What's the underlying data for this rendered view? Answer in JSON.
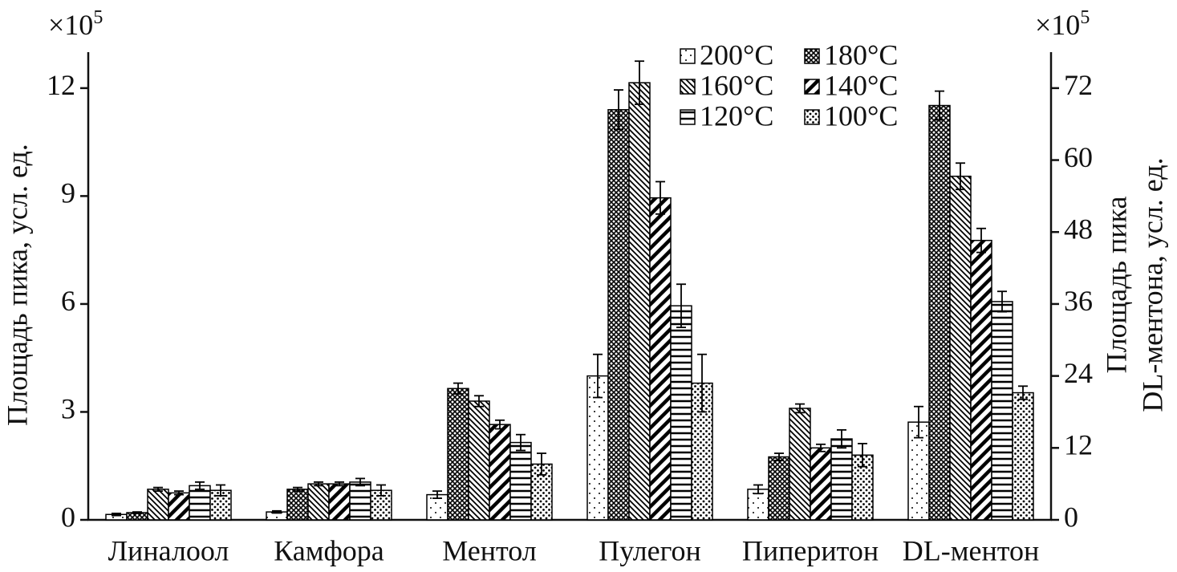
{
  "chart_data": {
    "type": "bar",
    "y_multiplier": "×10",
    "y_multiplier_exp": "5",
    "y2_multiplier": "×10",
    "y2_multiplier_exp": "5",
    "ylabel": "Площадь пика, усл. ед.",
    "y2label": [
      "Площадь пика",
      "DL-ментона, усл. ед."
    ],
    "categories": [
      "Линалоол",
      "Камфора",
      "Ментол",
      "Пулегон",
      "Пиперитон",
      "DL-ментон"
    ],
    "category_axes": [
      "y",
      "y",
      "y",
      "y",
      "y",
      "y2"
    ],
    "ylim": [
      0,
      13
    ],
    "yticks": [
      0,
      3,
      6,
      9,
      12
    ],
    "y2lim": [
      0,
      78
    ],
    "y2ticks": [
      0,
      12,
      24,
      36,
      48,
      60,
      72
    ],
    "legend": "top-right",
    "series": [
      {
        "name": "200°C",
        "color": "#000000",
        "pattern": "sparse-dots",
        "values": [
          0.15,
          0.22,
          0.7,
          4.0,
          0.85,
          16.3
        ],
        "errors": [
          0.03,
          0.03,
          0.1,
          0.6,
          0.12,
          2.6
        ]
      },
      {
        "name": "180°C",
        "color": "#000000",
        "pattern": "crosshatch",
        "values": [
          0.2,
          0.85,
          3.65,
          11.4,
          1.75,
          69.1
        ],
        "errors": [
          0.02,
          0.05,
          0.15,
          0.55,
          0.1,
          2.4
        ]
      },
      {
        "name": "160°C",
        "color": "#000000",
        "pattern": "back-diagonal",
        "values": [
          0.85,
          1.0,
          3.3,
          12.15,
          3.1,
          57.3
        ],
        "errors": [
          0.05,
          0.05,
          0.15,
          0.6,
          0.12,
          2.2
        ]
      },
      {
        "name": "140°C",
        "color": "#000000",
        "pattern": "thick-diagonal",
        "values": [
          0.75,
          1.0,
          2.65,
          8.95,
          2.0,
          46.6
        ],
        "errors": [
          0.05,
          0.05,
          0.12,
          0.45,
          0.1,
          2.0
        ]
      },
      {
        "name": "120°C",
        "color": "#000000",
        "pattern": "horizontal",
        "values": [
          0.95,
          1.05,
          2.15,
          5.95,
          2.25,
          36.4
        ],
        "errors": [
          0.1,
          0.1,
          0.22,
          0.6,
          0.25,
          1.7
        ]
      },
      {
        "name": "100°C",
        "color": "#000000",
        "pattern": "dense-dots",
        "values": [
          0.82,
          0.82,
          1.55,
          3.8,
          1.8,
          21.2
        ],
        "errors": [
          0.15,
          0.15,
          0.3,
          0.8,
          0.32,
          1.1
        ]
      }
    ]
  }
}
